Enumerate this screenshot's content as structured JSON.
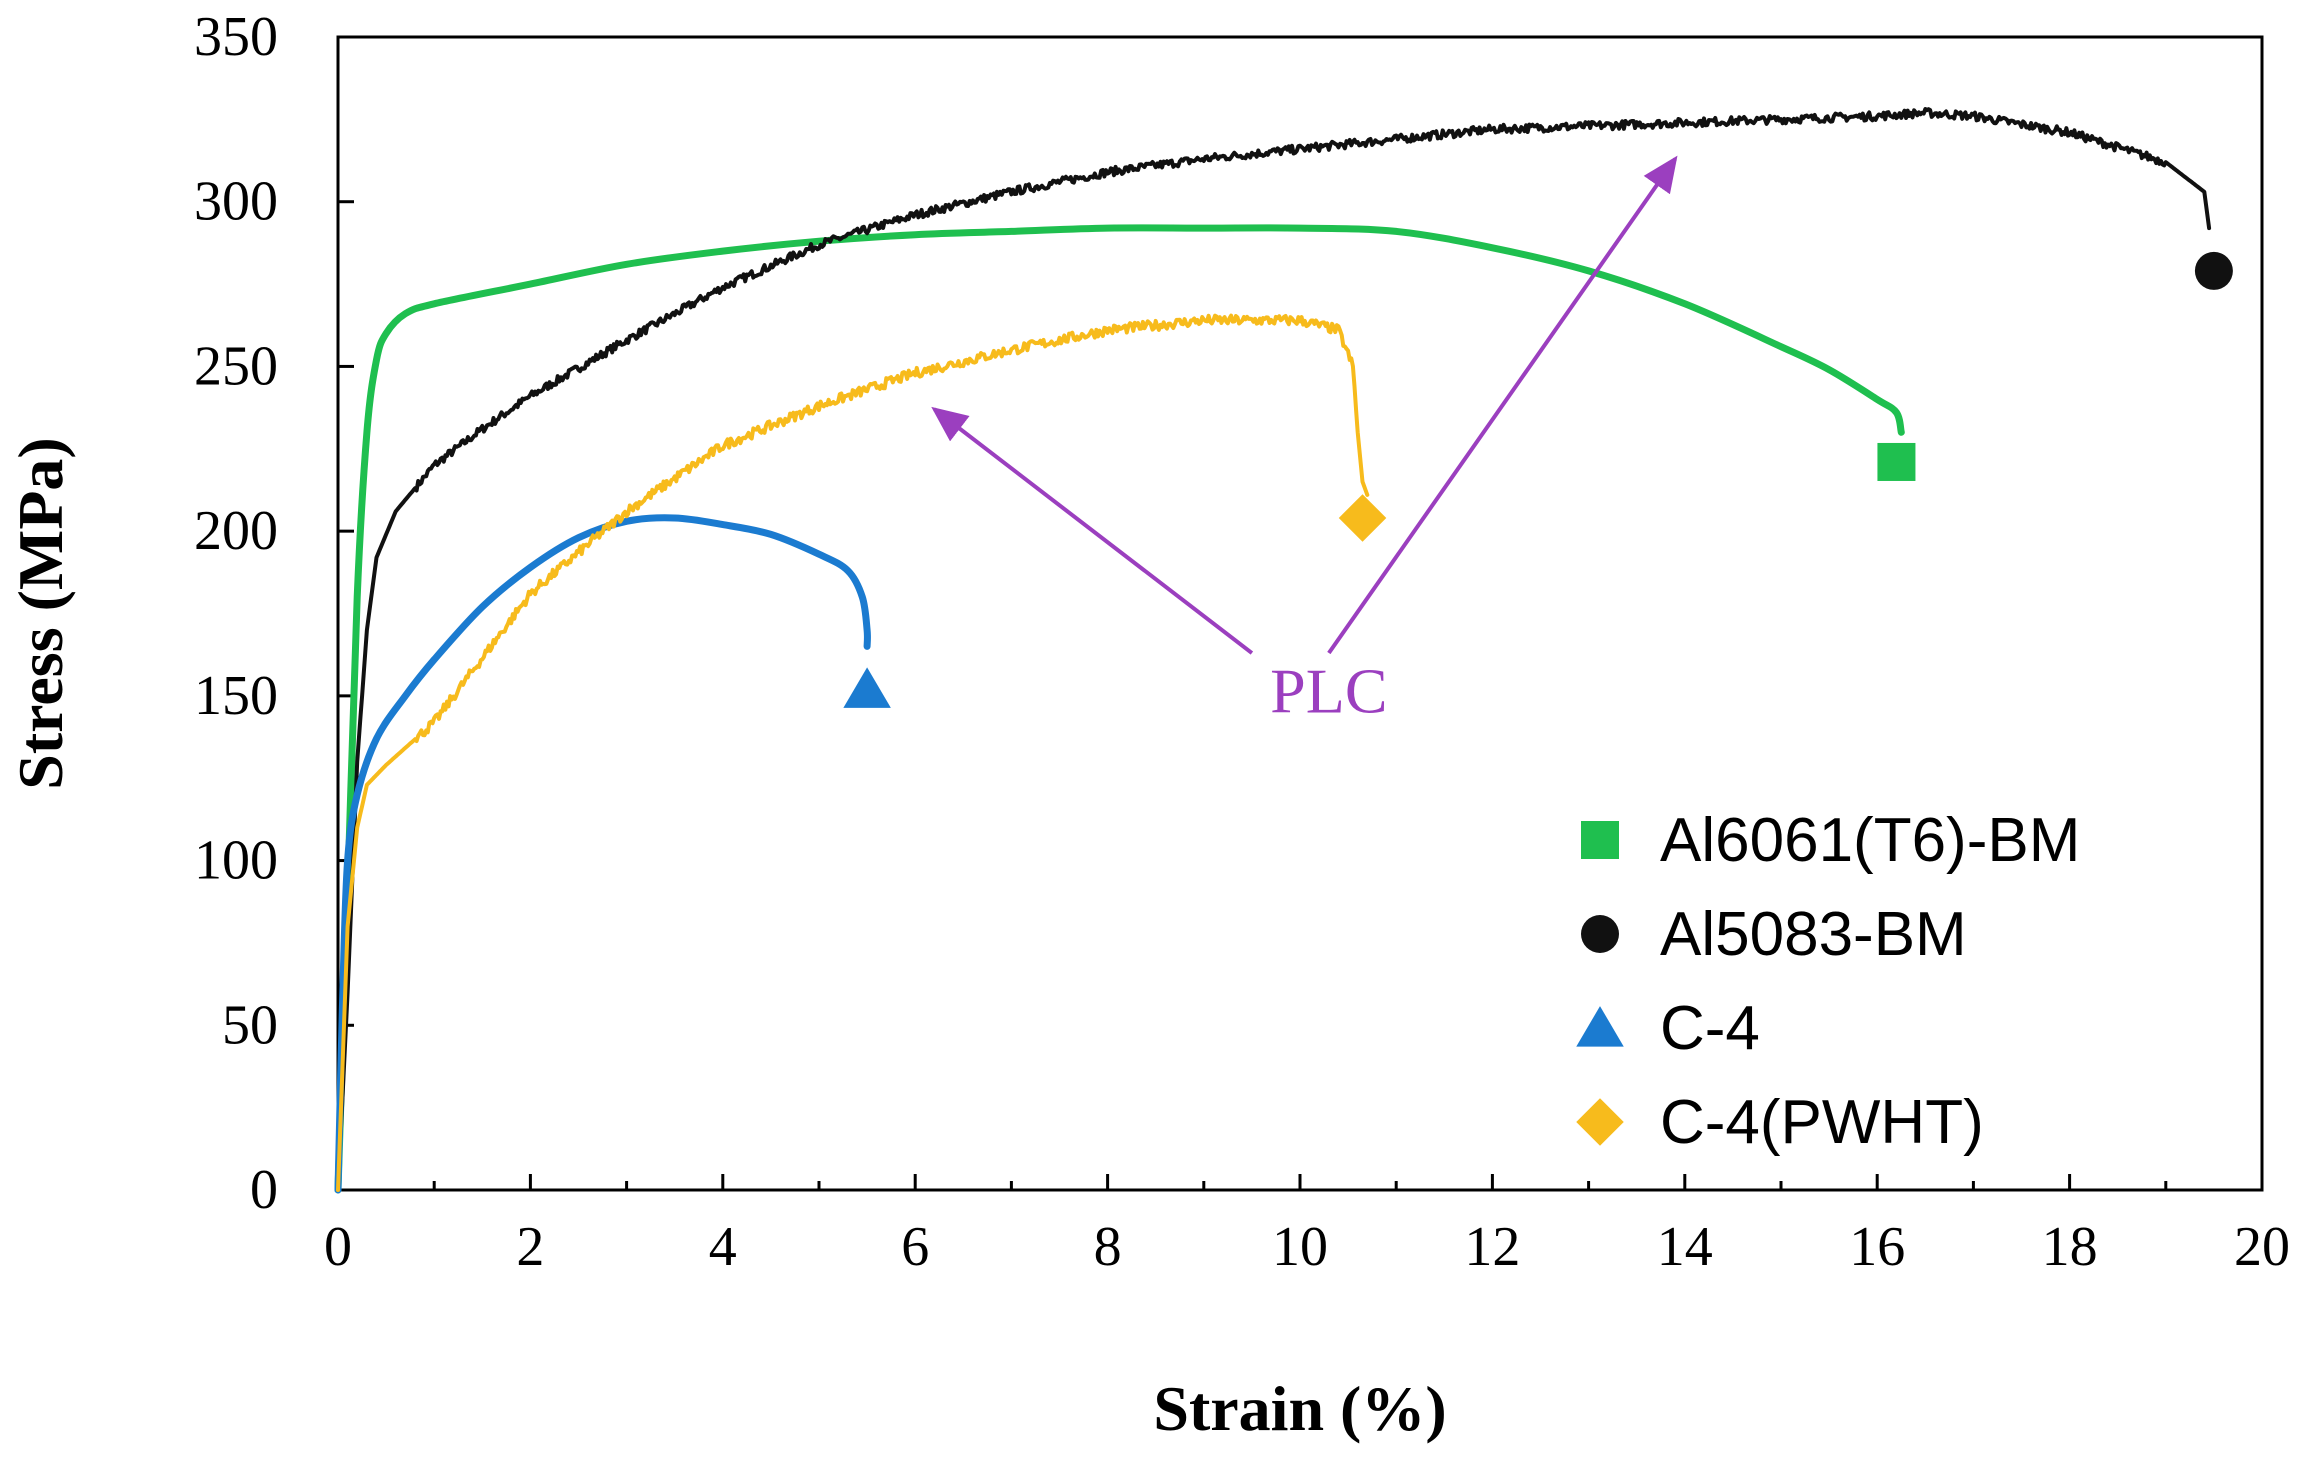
{
  "chart_data": {
    "type": "line",
    "title": "",
    "xlabel": "Strain (%)",
    "ylabel": "Stress (MPa)",
    "xlim": [
      0,
      20
    ],
    "ylim": [
      0,
      350
    ],
    "xticks": [
      0,
      2,
      4,
      6,
      8,
      10,
      12,
      14,
      16,
      18,
      20
    ],
    "yticks": [
      0,
      50,
      100,
      150,
      200,
      250,
      300,
      350
    ],
    "grid": false,
    "legend_position": "bottom-right",
    "series": [
      {
        "name": "Al6061(T6)-BM",
        "color": "#1fbf4f",
        "marker": "square",
        "noise": 0,
        "x": [
          0,
          0.1,
          0.2,
          0.3,
          0.4,
          0.5,
          0.7,
          1,
          2,
          3,
          4,
          5,
          6,
          7,
          8,
          9,
          10,
          11,
          12,
          13,
          14,
          15,
          15.5,
          16,
          16.2,
          16.25
        ],
        "y": [
          0,
          90,
          180,
          230,
          252,
          260,
          266,
          269,
          275,
          281,
          285,
          288,
          290,
          291,
          292,
          292,
          292,
          291,
          286,
          279,
          269,
          256,
          249,
          240,
          236,
          230
        ],
        "end_marker": [
          16.2,
          221
        ]
      },
      {
        "name": "Al5083-BM",
        "color": "#111111",
        "marker": "circle",
        "noise": 2.5,
        "x": [
          0,
          0.1,
          0.2,
          0.3,
          0.4,
          0.6,
          1,
          1.5,
          2,
          3,
          4,
          5,
          6,
          7,
          8,
          9,
          10,
          11,
          12,
          13,
          14,
          15,
          16,
          16.5,
          17,
          18,
          19,
          19.4,
          19.45
        ],
        "y": [
          0,
          60,
          130,
          170,
          192,
          206,
          220,
          231,
          241,
          258,
          274,
          287,
          296,
          303,
          309,
          313,
          316,
          319,
          322,
          323,
          324,
          325,
          326,
          327,
          326,
          321,
          312,
          303,
          292
        ],
        "end_marker": [
          19.5,
          279
        ]
      },
      {
        "name": "C-4",
        "color": "#1b7bd0",
        "marker": "triangle",
        "noise": 0,
        "x": [
          0,
          0.05,
          0.1,
          0.2,
          0.4,
          0.7,
          1,
          1.5,
          2,
          2.5,
          3,
          3.5,
          4,
          4.5,
          5,
          5.3,
          5.45,
          5.5,
          5.5
        ],
        "y": [
          0,
          60,
          100,
          120,
          137,
          150,
          161,
          177,
          189,
          198,
          203,
          204,
          202,
          199,
          193,
          188,
          180,
          170,
          165
        ],
        "end_marker": [
          5.5,
          152
        ]
      },
      {
        "name": "C-4(PWHT)",
        "color": "#f7bb1c",
        "marker": "diamond",
        "noise": 3,
        "x": [
          0,
          0.05,
          0.1,
          0.2,
          0.3,
          0.5,
          1,
          2,
          3,
          4,
          5,
          6,
          7,
          8,
          9,
          10,
          10.4,
          10.55,
          10.6,
          10.65,
          10.7
        ],
        "y": [
          0,
          40,
          80,
          110,
          123,
          129,
          142,
          181,
          206,
          226,
          238,
          248,
          255,
          261,
          264,
          264,
          261,
          250,
          230,
          215,
          211
        ],
        "end_marker": [
          10.65,
          204
        ]
      }
    ],
    "annotations": [
      {
        "text": "PLC",
        "color": "#9b3fbf",
        "at": [
          10.3,
          151
        ],
        "arrows": [
          {
            "from": [
              9.5,
              163
            ],
            "to": [
              6.2,
              237
            ]
          },
          {
            "from": [
              10.3,
              163
            ],
            "to": [
              13.9,
              313
            ]
          }
        ]
      }
    ]
  }
}
